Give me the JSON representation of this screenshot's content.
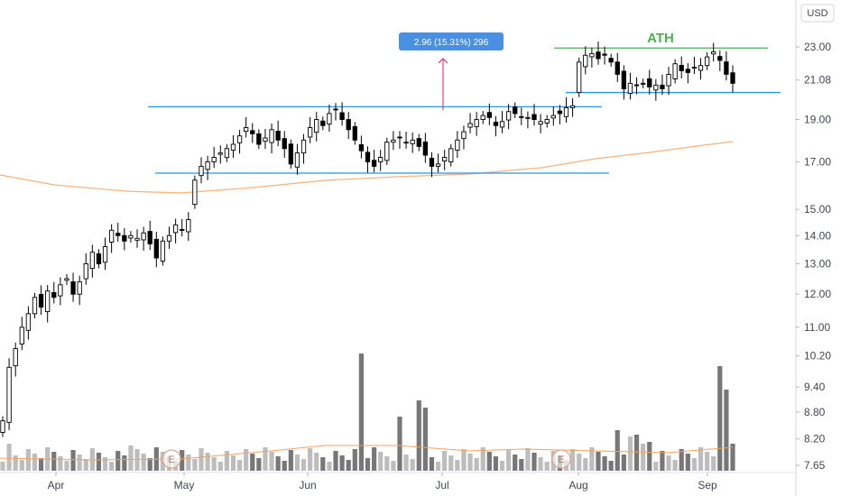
{
  "chart_data": {
    "type": "candlestick",
    "currency": "USD",
    "y_scale": "log",
    "ylim": [
      7.5,
      24.5
    ],
    "y_ticks": [
      "23.00",
      "21.08",
      "19.00",
      "17.00",
      "15.00",
      "14.00",
      "13.00",
      "12.00",
      "11.00",
      "10.20",
      "9.40",
      "8.80",
      "8.20",
      "7.65"
    ],
    "x_ticks": [
      "Apr",
      "May",
      "Jun",
      "Jul",
      "Aug",
      "Sep"
    ],
    "grid": false,
    "annotations": {
      "ath_label": "ATH",
      "measure_label": "2.96 (15.31%) 296",
      "horizontal_levels": [
        {
          "name": "ath",
          "value": 22.93,
          "color": "#4caf50"
        },
        {
          "name": "upper-range-top",
          "value": 19.65,
          "color": "#2196f3"
        },
        {
          "name": "upper-range-bottom",
          "value": 20.4,
          "color": "#2196f3"
        },
        {
          "name": "range-bottom",
          "value": 16.5,
          "color": "#2196f3"
        }
      ],
      "earnings_markers": [
        "E",
        "E"
      ]
    },
    "moving_average_color": "#f7b27a",
    "volume_colors": {
      "up": "#bdbdbd",
      "down": "#777777"
    },
    "candle_colors": {
      "up": "#ffffff",
      "down": "#000000",
      "wick": "#000000"
    }
  }
}
